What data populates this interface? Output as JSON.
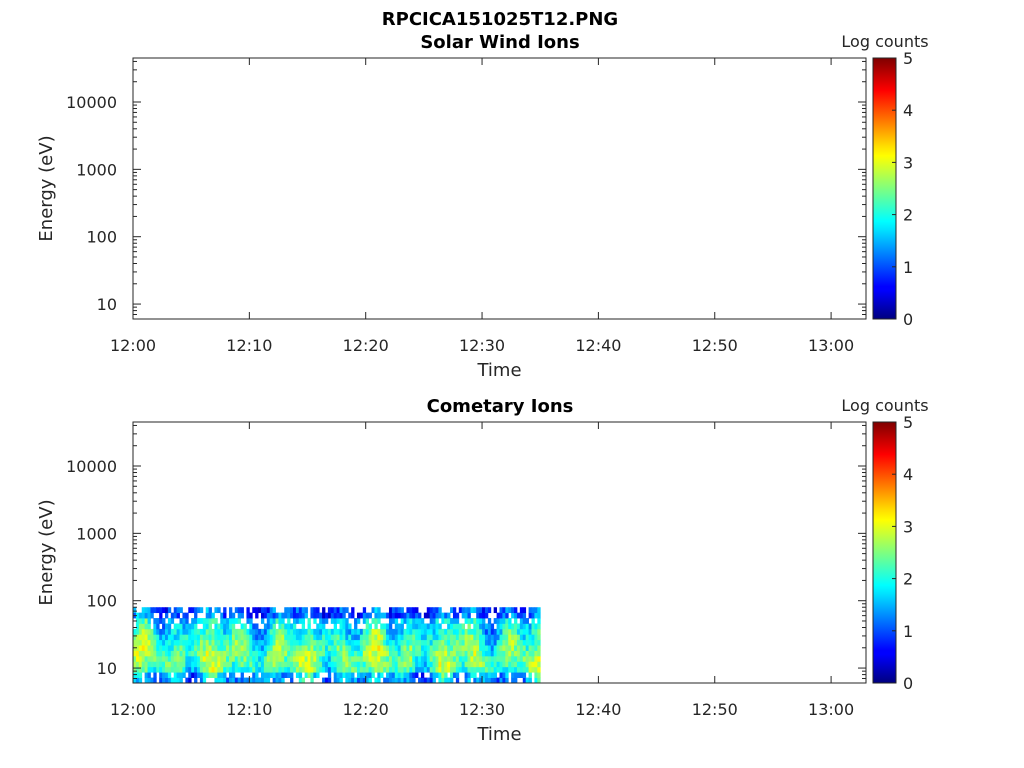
{
  "figure_title": "RPCICA151025T12.PNG",
  "chart_data": [
    {
      "type": "heatmap",
      "title": "Solar Wind Ions",
      "xlabel": "Time",
      "ylabel": "Energy (eV)",
      "x_ticks": [
        "12:00",
        "12:10",
        "12:20",
        "12:30",
        "12:40",
        "12:50",
        "13:00"
      ],
      "x_range": [
        "12:00",
        "13:03"
      ],
      "y_scale": "log",
      "y_ticks": [
        "10",
        "100",
        "1000",
        "10000"
      ],
      "y_range": [
        6,
        45000
      ],
      "colorbar_label": "Log counts",
      "colorbar_ticks": [
        "0",
        "1",
        "2",
        "3",
        "4",
        "5"
      ],
      "colorbar_range": [
        0,
        5
      ],
      "colormap": "jet",
      "data": []
    },
    {
      "type": "heatmap",
      "title": "Cometary Ions",
      "xlabel": "Time",
      "ylabel": "Energy (eV)",
      "x_ticks": [
        "12:00",
        "12:10",
        "12:20",
        "12:30",
        "12:40",
        "12:50",
        "13:00"
      ],
      "x_range": [
        "12:00",
        "13:03"
      ],
      "y_scale": "log",
      "y_ticks": [
        "10",
        "100",
        "1000",
        "10000"
      ],
      "y_range": [
        6,
        45000
      ],
      "colorbar_label": "Log counts",
      "colorbar_ticks": [
        "0",
        "1",
        "2",
        "3",
        "4",
        "5"
      ],
      "colorbar_range": [
        0,
        5
      ],
      "colormap": "jet",
      "data_time_range": [
        "12:00",
        "12:35"
      ],
      "data_energy_range": [
        6,
        80
      ],
      "typical_log_counts": [
        0.5,
        3.0
      ]
    }
  ]
}
